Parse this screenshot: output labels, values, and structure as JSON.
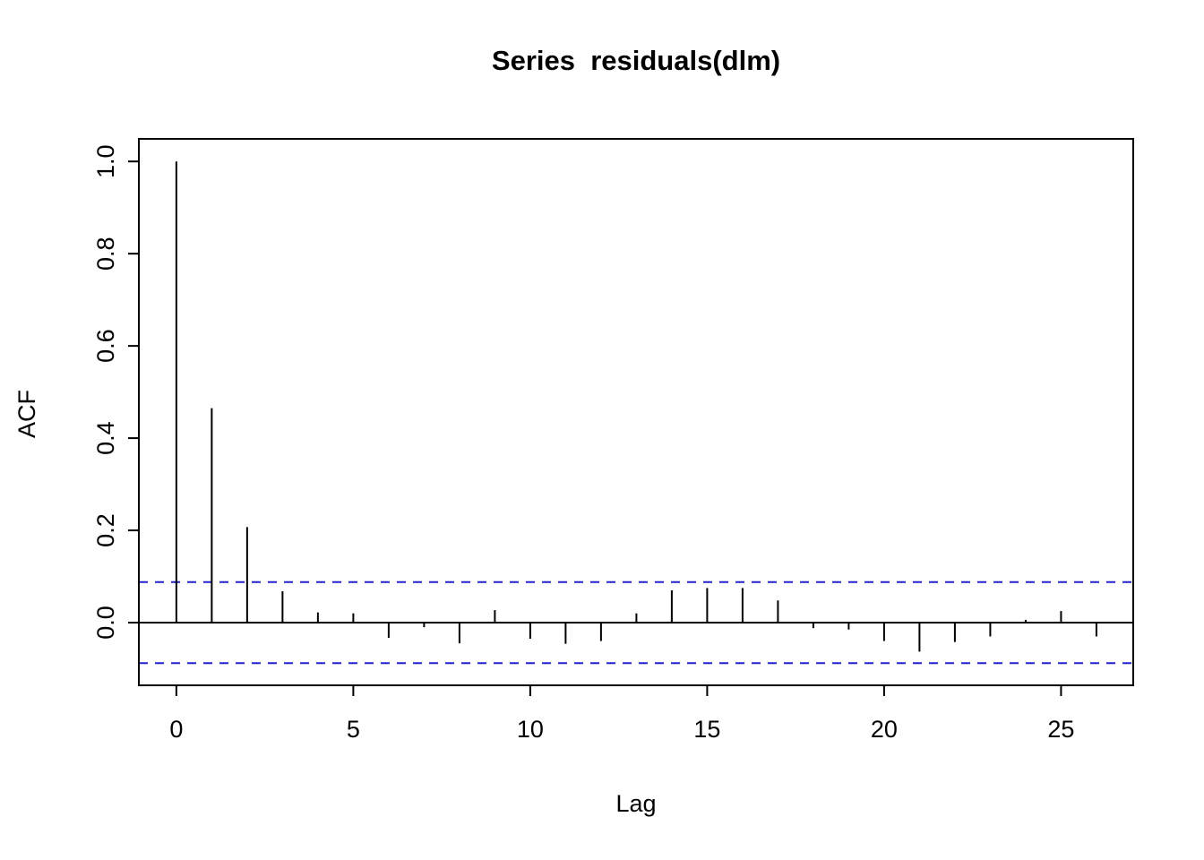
{
  "chart_data": {
    "type": "bar",
    "subtype": "acf-stem-plot",
    "title": "Series  residuals(dlm)",
    "xlabel": "Lag",
    "ylabel": "ACF",
    "x": [
      0,
      1,
      2,
      3,
      4,
      5,
      6,
      7,
      8,
      9,
      10,
      11,
      12,
      13,
      14,
      15,
      16,
      17,
      18,
      19,
      20,
      21,
      22,
      23,
      24,
      25,
      26
    ],
    "values": [
      1.0,
      0.465,
      0.207,
      0.068,
      0.022,
      0.02,
      -0.033,
      -0.01,
      -0.045,
      0.027,
      -0.035,
      -0.046,
      -0.04,
      0.02,
      0.07,
      0.075,
      0.075,
      0.048,
      -0.012,
      -0.015,
      -0.04,
      -0.063,
      -0.042,
      -0.03,
      0.006,
      0.025,
      -0.03
    ],
    "confidence_bounds": [
      0.088,
      -0.088
    ],
    "xlim": [
      -1.06,
      27.04
    ],
    "ylim": [
      -0.136,
      1.049
    ],
    "x_ticks": [
      0,
      5,
      10,
      15,
      20,
      25
    ],
    "y_tick_values": [
      0.0,
      0.2,
      0.4,
      0.6,
      0.8,
      1.0
    ],
    "y_ticks": [
      "0.0",
      "0.2",
      "0.4",
      "0.6",
      "0.8",
      "1.0"
    ],
    "bar_color": "#000000",
    "conf_line_color": "#2222cc",
    "axis_color": "#000000",
    "grid": false,
    "legend": false
  }
}
